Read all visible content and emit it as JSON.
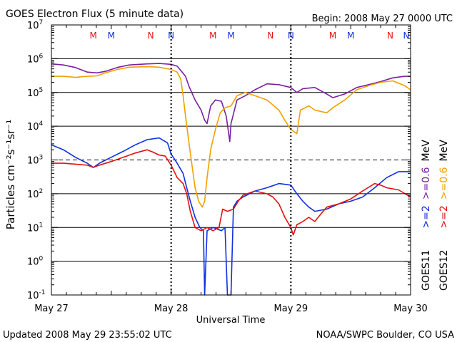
{
  "chart_data": {
    "type": "line",
    "title": "GOES Electron Flux (5 minute data)",
    "begin_label": "Begin: 2008 May 27 0000 UTC",
    "xlabel": "Universal Time",
    "ylabel": "Particles cm⁻²s⁻¹sr⁻¹",
    "y_scale": "log",
    "ylim": [
      0.1,
      10000000
    ],
    "y_ticks": [
      {
        "base": "10",
        "exp": "7"
      },
      {
        "base": "10",
        "exp": "6"
      },
      {
        "base": "10",
        "exp": "5"
      },
      {
        "base": "10",
        "exp": "4"
      },
      {
        "base": "10",
        "exp": "3"
      },
      {
        "base": "10",
        "exp": "2"
      },
      {
        "base": "10",
        "exp": "1"
      },
      {
        "base": "10",
        "exp": "0"
      },
      {
        "base": "10",
        "exp": "-1"
      }
    ],
    "x_ticks": [
      "May 27",
      "May 28",
      "May 29",
      "May 30"
    ],
    "xlim_days": [
      0,
      3
    ],
    "grid": "horizontal decades, dashed at 10^3",
    "markers_top": [
      {
        "label": "M",
        "day": 0.35,
        "color": "#e01010"
      },
      {
        "label": "M",
        "day": 0.5,
        "color": "#1030e0"
      },
      {
        "label": "N",
        "day": 0.83,
        "color": "#e01010"
      },
      {
        "label": "N",
        "day": 1.0,
        "color": "#1030e0"
      },
      {
        "label": "M",
        "day": 1.35,
        "color": "#e01010"
      },
      {
        "label": "M",
        "day": 1.5,
        "color": "#1030e0"
      },
      {
        "label": "N",
        "day": 1.83,
        "color": "#e01010"
      },
      {
        "label": "N",
        "day": 2.0,
        "color": "#1030e0"
      },
      {
        "label": "M",
        "day": 2.35,
        "color": "#e01010"
      },
      {
        "label": "M",
        "day": 2.5,
        "color": "#1030e0"
      },
      {
        "label": "N",
        "day": 2.83,
        "color": "#e01010"
      },
      {
        "label": "N",
        "day": 3.0,
        "color": "#1030e0"
      }
    ],
    "legend": [
      {
        "sat": "GOES11",
        "thresholds": [
          {
            "text": ">=2",
            "color": "#1030e0"
          },
          {
            "text": ">=0.6",
            "color": "#7a1fa0"
          }
        ],
        "unit": "MeV"
      },
      {
        "sat": "GOES12",
        "thresholds": [
          {
            "text": ">=2",
            "color": "#e01010"
          },
          {
            "text": ">=0.6",
            "color": "#f0a000"
          }
        ],
        "unit": "MeV"
      }
    ],
    "series": [
      {
        "name": "GOES11 >=0.6 MeV",
        "color": "#7a1fa0",
        "points": [
          [
            0,
            700000
          ],
          [
            0.1,
            650000
          ],
          [
            0.2,
            550000
          ],
          [
            0.3,
            400000
          ],
          [
            0.38,
            380000
          ],
          [
            0.45,
            420000
          ],
          [
            0.55,
            550000
          ],
          [
            0.65,
            650000
          ],
          [
            0.8,
            700000
          ],
          [
            0.9,
            720000
          ],
          [
            1.0,
            680000
          ],
          [
            1.05,
            600000
          ],
          [
            1.08,
            450000
          ],
          [
            1.12,
            300000
          ],
          [
            1.15,
            150000
          ],
          [
            1.2,
            60000
          ],
          [
            1.25,
            30000
          ],
          [
            1.28,
            15000
          ],
          [
            1.3,
            12000
          ],
          [
            1.33,
            40000
          ],
          [
            1.37,
            60000
          ],
          [
            1.42,
            55000
          ],
          [
            1.46,
            20000
          ],
          [
            1.49,
            3500
          ],
          [
            1.5,
            12000
          ],
          [
            1.55,
            60000
          ],
          [
            1.62,
            80000
          ],
          [
            1.7,
            120000
          ],
          [
            1.8,
            180000
          ],
          [
            1.9,
            170000
          ],
          [
            2.0,
            140000
          ],
          [
            2.05,
            100000
          ],
          [
            2.1,
            130000
          ],
          [
            2.2,
            140000
          ],
          [
            2.3,
            90000
          ],
          [
            2.35,
            70000
          ],
          [
            2.45,
            90000
          ],
          [
            2.55,
            140000
          ],
          [
            2.65,
            170000
          ],
          [
            2.75,
            210000
          ],
          [
            2.85,
            270000
          ],
          [
            2.95,
            300000
          ],
          [
            3.0,
            300000
          ]
        ]
      },
      {
        "name": "GOES12 >=0.6 MeV",
        "color": "#f0a000",
        "points": [
          [
            0,
            300000
          ],
          [
            0.1,
            300000
          ],
          [
            0.2,
            280000
          ],
          [
            0.3,
            300000
          ],
          [
            0.38,
            310000
          ],
          [
            0.45,
            380000
          ],
          [
            0.55,
            480000
          ],
          [
            0.65,
            560000
          ],
          [
            0.8,
            580000
          ],
          [
            0.9,
            560000
          ],
          [
            1.0,
            480000
          ],
          [
            1.05,
            400000
          ],
          [
            1.08,
            250000
          ],
          [
            1.1,
            80000
          ],
          [
            1.12,
            20000
          ],
          [
            1.15,
            3000
          ],
          [
            1.18,
            500
          ],
          [
            1.2,
            150
          ],
          [
            1.23,
            60
          ],
          [
            1.26,
            40
          ],
          [
            1.28,
            60
          ],
          [
            1.3,
            300
          ],
          [
            1.33,
            2000
          ],
          [
            1.37,
            8000
          ],
          [
            1.41,
            25000
          ],
          [
            1.45,
            35000
          ],
          [
            1.5,
            40000
          ],
          [
            1.55,
            80000
          ],
          [
            1.62,
            100000
          ],
          [
            1.7,
            80000
          ],
          [
            1.8,
            60000
          ],
          [
            1.9,
            30000
          ],
          [
            1.95,
            15000
          ],
          [
            2.0,
            8000
          ],
          [
            2.05,
            6000
          ],
          [
            2.08,
            30000
          ],
          [
            2.15,
            40000
          ],
          [
            2.2,
            30000
          ],
          [
            2.3,
            25000
          ],
          [
            2.35,
            35000
          ],
          [
            2.45,
            60000
          ],
          [
            2.55,
            120000
          ],
          [
            2.65,
            160000
          ],
          [
            2.75,
            200000
          ],
          [
            2.85,
            220000
          ],
          [
            2.95,
            160000
          ],
          [
            3.0,
            120000
          ]
        ]
      },
      {
        "name": "GOES11 >=2 MeV",
        "color": "#1030e0",
        "points": [
          [
            0,
            2800
          ],
          [
            0.1,
            2000
          ],
          [
            0.2,
            1200
          ],
          [
            0.3,
            800
          ],
          [
            0.35,
            600
          ],
          [
            0.4,
            800
          ],
          [
            0.5,
            1200
          ],
          [
            0.6,
            1800
          ],
          [
            0.7,
            2800
          ],
          [
            0.8,
            4000
          ],
          [
            0.9,
            4500
          ],
          [
            0.97,
            3200
          ],
          [
            1.0,
            1500
          ],
          [
            1.05,
            800
          ],
          [
            1.1,
            400
          ],
          [
            1.13,
            150
          ],
          [
            1.16,
            60
          ],
          [
            1.2,
            20
          ],
          [
            1.24,
            10
          ],
          [
            1.27,
            8
          ],
          [
            1.28,
            0.1
          ],
          [
            1.3,
            8
          ],
          [
            1.35,
            10
          ],
          [
            1.42,
            8
          ],
          [
            1.45,
            10
          ],
          [
            1.47,
            0.1
          ],
          [
            1.5,
            0.1
          ],
          [
            1.52,
            40
          ],
          [
            1.55,
            60
          ],
          [
            1.6,
            80
          ],
          [
            1.7,
            120
          ],
          [
            1.8,
            150
          ],
          [
            1.9,
            200
          ],
          [
            2.0,
            180
          ],
          [
            2.05,
            100
          ],
          [
            2.1,
            60
          ],
          [
            2.15,
            40
          ],
          [
            2.2,
            30
          ],
          [
            2.3,
            35
          ],
          [
            2.4,
            50
          ],
          [
            2.5,
            60
          ],
          [
            2.6,
            80
          ],
          [
            2.7,
            150
          ],
          [
            2.8,
            300
          ],
          [
            2.9,
            450
          ],
          [
            3.0,
            450
          ]
        ]
      },
      {
        "name": "GOES12 >=2 MeV",
        "color": "#e01010",
        "points": [
          [
            0,
            800
          ],
          [
            0.1,
            800
          ],
          [
            0.2,
            750
          ],
          [
            0.3,
            700
          ],
          [
            0.35,
            600
          ],
          [
            0.4,
            700
          ],
          [
            0.5,
            900
          ],
          [
            0.6,
            1200
          ],
          [
            0.7,
            1600
          ],
          [
            0.8,
            2000
          ],
          [
            0.85,
            1700
          ],
          [
            0.9,
            1400
          ],
          [
            0.95,
            1300
          ],
          [
            1.0,
            700
          ],
          [
            1.05,
            300
          ],
          [
            1.1,
            200
          ],
          [
            1.13,
            100
          ],
          [
            1.16,
            30
          ],
          [
            1.2,
            10
          ],
          [
            1.25,
            8
          ],
          [
            1.3,
            10
          ],
          [
            1.35,
            8
          ],
          [
            1.4,
            10
          ],
          [
            1.43,
            35
          ],
          [
            1.47,
            30
          ],
          [
            1.52,
            35
          ],
          [
            1.56,
            60
          ],
          [
            1.6,
            90
          ],
          [
            1.7,
            120
          ],
          [
            1.8,
            100
          ],
          [
            1.85,
            80
          ],
          [
            1.9,
            50
          ],
          [
            1.95,
            20
          ],
          [
            2.0,
            10
          ],
          [
            2.02,
            6
          ],
          [
            2.05,
            12
          ],
          [
            2.1,
            15
          ],
          [
            2.15,
            20
          ],
          [
            2.2,
            15
          ],
          [
            2.25,
            25
          ],
          [
            2.3,
            40
          ],
          [
            2.4,
            50
          ],
          [
            2.5,
            70
          ],
          [
            2.6,
            120
          ],
          [
            2.7,
            200
          ],
          [
            2.75,
            180
          ],
          [
            2.8,
            150
          ],
          [
            2.9,
            130
          ],
          [
            3.0,
            80
          ]
        ]
      }
    ]
  },
  "footer": {
    "updated": "Updated 2008 May 29 23:55:02 UTC",
    "source": "NOAA/SWPC Boulder, CO USA"
  }
}
